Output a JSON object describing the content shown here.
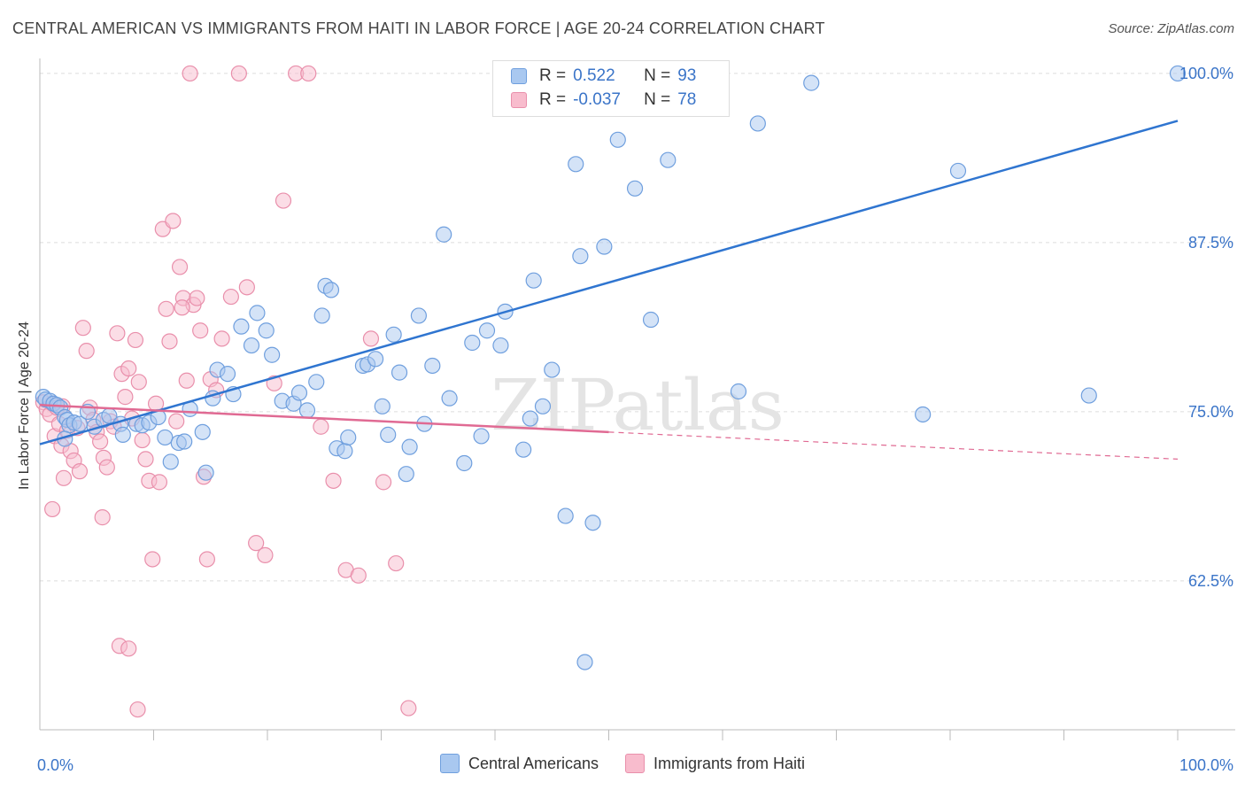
{
  "title": "CENTRAL AMERICAN VS IMMIGRANTS FROM HAITI IN LABOR FORCE | AGE 20-24 CORRELATION CHART",
  "source": "Source: ZipAtlas.com",
  "watermark": "ZIPatlas",
  "colors": {
    "blue_fill": "#a9c8f0",
    "blue_stroke": "#6f9fde",
    "blue_line": "#2f75d0",
    "pink_fill": "#f8bccd",
    "pink_stroke": "#e98fab",
    "pink_line": "#e06a93",
    "axis_text": "#3a74c8"
  },
  "legend": {
    "rows": [
      {
        "r_label": "R =",
        "r_value": "0.522",
        "n_label": "N =",
        "n_value": "93"
      },
      {
        "r_label": "R =",
        "r_value": "-0.037",
        "n_label": "N =",
        "n_value": "78"
      }
    ]
  },
  "bottom_legend": [
    "Central Americans",
    "Immigrants from Haiti"
  ],
  "chart_data": {
    "type": "scatter",
    "title": "CENTRAL AMERICAN VS IMMIGRANTS FROM HAITI IN LABOR FORCE | AGE 20-24 CORRELATION CHART",
    "xlabel": "",
    "ylabel": "In Labor Force | Age 20-24",
    "xlim": [
      0,
      100
    ],
    "ylim": [
      51.5,
      101.5
    ],
    "x_tick_labels": [
      "0.0%",
      "100.0%"
    ],
    "y_ticks": [
      62.5,
      75.0,
      87.5,
      100.0
    ],
    "y_tick_labels": [
      "62.5%",
      "75.0%",
      "87.5%",
      "100.0%"
    ],
    "grid": true,
    "legend_position": "top-center",
    "series": [
      {
        "name": "Central Americans",
        "R": 0.522,
        "N": 93,
        "trend": {
          "x": [
            0,
            100
          ],
          "y": [
            72.6,
            96.5
          ],
          "dashed_from": null
        },
        "points": [
          [
            0.3,
            76.1
          ],
          [
            0.5,
            75.9
          ],
          [
            0.9,
            75.8
          ],
          [
            1.2,
            75.6
          ],
          [
            1.5,
            75.5
          ],
          [
            1.8,
            75.3
          ],
          [
            2.2,
            74.6
          ],
          [
            2.4,
            74.4
          ],
          [
            2.6,
            74.0
          ],
          [
            2.2,
            73.0
          ],
          [
            3.0,
            74.2
          ],
          [
            3.5,
            74.1
          ],
          [
            4.2,
            75.0
          ],
          [
            4.8,
            73.9
          ],
          [
            5.6,
            74.4
          ],
          [
            6.1,
            74.7
          ],
          [
            7.1,
            74.1
          ],
          [
            7.3,
            73.3
          ],
          [
            8.5,
            74.1
          ],
          [
            9.0,
            74.0
          ],
          [
            9.6,
            74.2
          ],
          [
            10.4,
            74.6
          ],
          [
            11.0,
            73.1
          ],
          [
            11.5,
            71.3
          ],
          [
            12.2,
            72.7
          ],
          [
            12.7,
            72.8
          ],
          [
            13.2,
            75.2
          ],
          [
            14.3,
            73.5
          ],
          [
            14.6,
            70.5
          ],
          [
            15.6,
            78.1
          ],
          [
            15.2,
            76.0
          ],
          [
            16.5,
            77.8
          ],
          [
            17.0,
            76.3
          ],
          [
            17.7,
            81.3
          ],
          [
            18.6,
            79.9
          ],
          [
            19.1,
            82.3
          ],
          [
            19.9,
            81.0
          ],
          [
            20.4,
            79.2
          ],
          [
            21.3,
            75.8
          ],
          [
            22.3,
            75.6
          ],
          [
            22.8,
            76.4
          ],
          [
            23.5,
            75.1
          ],
          [
            24.3,
            77.2
          ],
          [
            24.8,
            82.1
          ],
          [
            25.1,
            84.3
          ],
          [
            25.6,
            84.0
          ],
          [
            26.1,
            72.3
          ],
          [
            26.8,
            72.1
          ],
          [
            27.1,
            73.1
          ],
          [
            28.4,
            78.4
          ],
          [
            28.8,
            78.5
          ],
          [
            29.5,
            78.9
          ],
          [
            30.1,
            75.4
          ],
          [
            30.6,
            73.3
          ],
          [
            31.1,
            80.7
          ],
          [
            31.6,
            77.9
          ],
          [
            32.2,
            70.4
          ],
          [
            32.5,
            72.4
          ],
          [
            33.3,
            82.1
          ],
          [
            33.8,
            74.1
          ],
          [
            34.5,
            78.4
          ],
          [
            35.5,
            88.1
          ],
          [
            36.0,
            76.0
          ],
          [
            37.3,
            71.2
          ],
          [
            38.0,
            80.1
          ],
          [
            38.8,
            73.2
          ],
          [
            39.3,
            81.0
          ],
          [
            40.5,
            79.9
          ],
          [
            40.9,
            82.4
          ],
          [
            42.5,
            72.2
          ],
          [
            43.1,
            74.5
          ],
          [
            43.4,
            84.7
          ],
          [
            44.2,
            75.4
          ],
          [
            45.0,
            78.1
          ],
          [
            46.2,
            67.3
          ],
          [
            47.1,
            93.3
          ],
          [
            47.5,
            86.5
          ],
          [
            47.9,
            56.5
          ],
          [
            48.6,
            66.8
          ],
          [
            49.6,
            87.2
          ],
          [
            50.8,
            95.1
          ],
          [
            52.3,
            91.5
          ],
          [
            53.7,
            81.8
          ],
          [
            55.2,
            93.6
          ],
          [
            57.6,
            97.7
          ],
          [
            59.7,
            100.0
          ],
          [
            61.4,
            76.5
          ],
          [
            63.1,
            96.3
          ],
          [
            67.8,
            99.3
          ],
          [
            77.6,
            74.8
          ],
          [
            80.7,
            92.8
          ],
          [
            92.2,
            76.2
          ],
          [
            100.0,
            100.0
          ]
        ]
      },
      {
        "name": "Immigrants from Haiti",
        "R": -0.037,
        "N": 78,
        "trend": {
          "x": [
            0,
            100
          ],
          "y": [
            75.5,
            71.5
          ],
          "dashed_from": 50
        },
        "points": [
          [
            0.3,
            75.7
          ],
          [
            0.6,
            75.2
          ],
          [
            0.9,
            74.8
          ],
          [
            1.1,
            75.6
          ],
          [
            1.3,
            73.2
          ],
          [
            1.5,
            75.3
          ],
          [
            1.7,
            74.1
          ],
          [
            1.9,
            72.5
          ],
          [
            2.1,
            70.1
          ],
          [
            2.4,
            73.6
          ],
          [
            2.7,
            72.1
          ],
          [
            3.0,
            71.4
          ],
          [
            3.3,
            73.8
          ],
          [
            3.5,
            70.6
          ],
          [
            3.8,
            81.2
          ],
          [
            4.1,
            79.5
          ],
          [
            4.4,
            75.3
          ],
          [
            4.7,
            74.4
          ],
          [
            5.0,
            73.5
          ],
          [
            5.3,
            72.8
          ],
          [
            5.6,
            71.6
          ],
          [
            5.9,
            70.9
          ],
          [
            6.2,
            74.3
          ],
          [
            6.5,
            73.9
          ],
          [
            6.8,
            80.8
          ],
          [
            7.2,
            77.8
          ],
          [
            7.5,
            76.1
          ],
          [
            7.8,
            78.2
          ],
          [
            8.1,
            74.5
          ],
          [
            8.4,
            80.3
          ],
          [
            8.7,
            77.2
          ],
          [
            9.0,
            72.9
          ],
          [
            9.3,
            71.5
          ],
          [
            9.6,
            69.9
          ],
          [
            9.9,
            64.1
          ],
          [
            10.2,
            75.6
          ],
          [
            10.5,
            69.8
          ],
          [
            10.8,
            88.5
          ],
          [
            11.1,
            82.6
          ],
          [
            11.4,
            80.2
          ],
          [
            11.7,
            89.1
          ],
          [
            12.0,
            74.3
          ],
          [
            12.3,
            85.7
          ],
          [
            12.6,
            83.4
          ],
          [
            12.9,
            77.3
          ],
          [
            13.2,
            100.0
          ],
          [
            13.5,
            82.9
          ],
          [
            13.8,
            83.4
          ],
          [
            14.1,
            81.0
          ],
          [
            14.4,
            70.2
          ],
          [
            14.7,
            64.1
          ],
          [
            15.0,
            77.4
          ],
          [
            15.5,
            76.6
          ],
          [
            16.0,
            80.4
          ],
          [
            16.8,
            83.5
          ],
          [
            17.5,
            100.0
          ],
          [
            18.2,
            84.2
          ],
          [
            19.0,
            65.3
          ],
          [
            19.8,
            64.4
          ],
          [
            20.6,
            77.1
          ],
          [
            21.4,
            90.6
          ],
          [
            22.5,
            100.0
          ],
          [
            23.6,
            100.0
          ],
          [
            24.7,
            73.9
          ],
          [
            25.8,
            69.9
          ],
          [
            26.9,
            63.3
          ],
          [
            28.0,
            62.9
          ],
          [
            29.1,
            80.4
          ],
          [
            30.2,
            69.8
          ],
          [
            31.3,
            63.8
          ],
          [
            32.4,
            53.1
          ],
          [
            7.0,
            57.7
          ],
          [
            7.8,
            57.5
          ],
          [
            8.6,
            53.0
          ],
          [
            5.5,
            67.2
          ],
          [
            12.5,
            82.7
          ],
          [
            1.1,
            67.8
          ],
          [
            2.0,
            75.4
          ]
        ]
      }
    ]
  }
}
